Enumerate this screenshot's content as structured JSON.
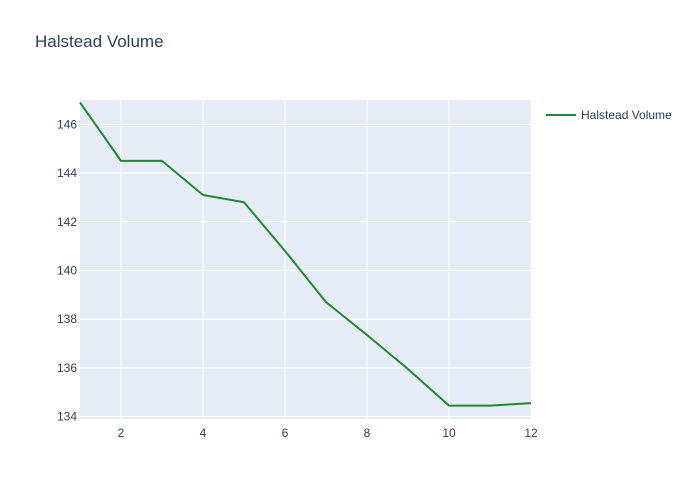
{
  "chart_data": {
    "type": "line",
    "title": "Halstead Volume",
    "xlabel": "",
    "ylabel": "",
    "xlim": [
      1,
      12
    ],
    "ylim": [
      133.9,
      147
    ],
    "x_ticks": [
      2,
      4,
      6,
      8,
      10,
      12
    ],
    "y_ticks": [
      134,
      136,
      138,
      140,
      142,
      144,
      146
    ],
    "grid": true,
    "legend_position": "top-right",
    "background_color": "#e5ecf6",
    "series": [
      {
        "name": "Halstead Volume",
        "color": "#228833",
        "x": [
          1,
          2,
          3,
          4,
          5,
          6,
          7,
          8,
          9,
          10,
          11,
          12
        ],
        "y": [
          146.9,
          144.5,
          144.5,
          143.1,
          142.8,
          140.8,
          138.7,
          137.35,
          135.95,
          134.45,
          134.45,
          134.55
        ]
      }
    ]
  }
}
